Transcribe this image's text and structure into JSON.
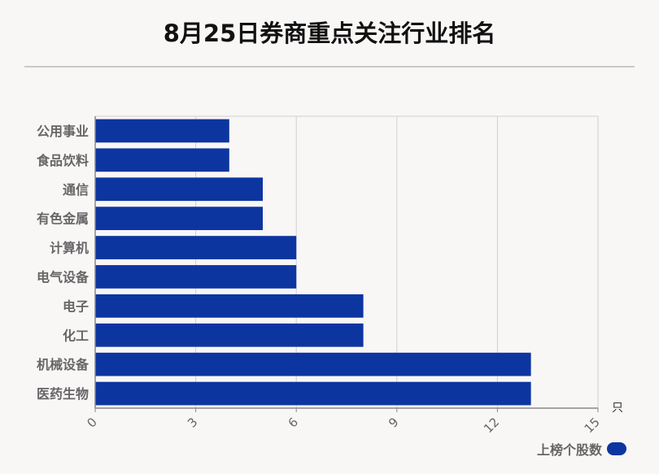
{
  "title": "8月25日券商重点关注行业排名",
  "colors": {
    "bar": "#0d35a0",
    "grid": "#d0d0d0",
    "axis": "#888888",
    "text": "#666666"
  },
  "chart_data": {
    "type": "bar",
    "orientation": "horizontal",
    "title": "8月25日券商重点关注行业排名",
    "categories": [
      "公用事业",
      "食品饮料",
      "通信",
      "有色金属",
      "计算机",
      "电气设备",
      "电子",
      "化工",
      "机械设备",
      "医药生物"
    ],
    "series": [
      {
        "name": "上榜个股数",
        "values": [
          4,
          4,
          5,
          5,
          6,
          6,
          8,
          8,
          13,
          13
        ]
      }
    ],
    "xlim": [
      0,
      15
    ],
    "xticks": [
      0,
      3,
      6,
      9,
      12,
      15
    ],
    "xunit": "只",
    "grid": true,
    "legend": "bottom-right"
  }
}
